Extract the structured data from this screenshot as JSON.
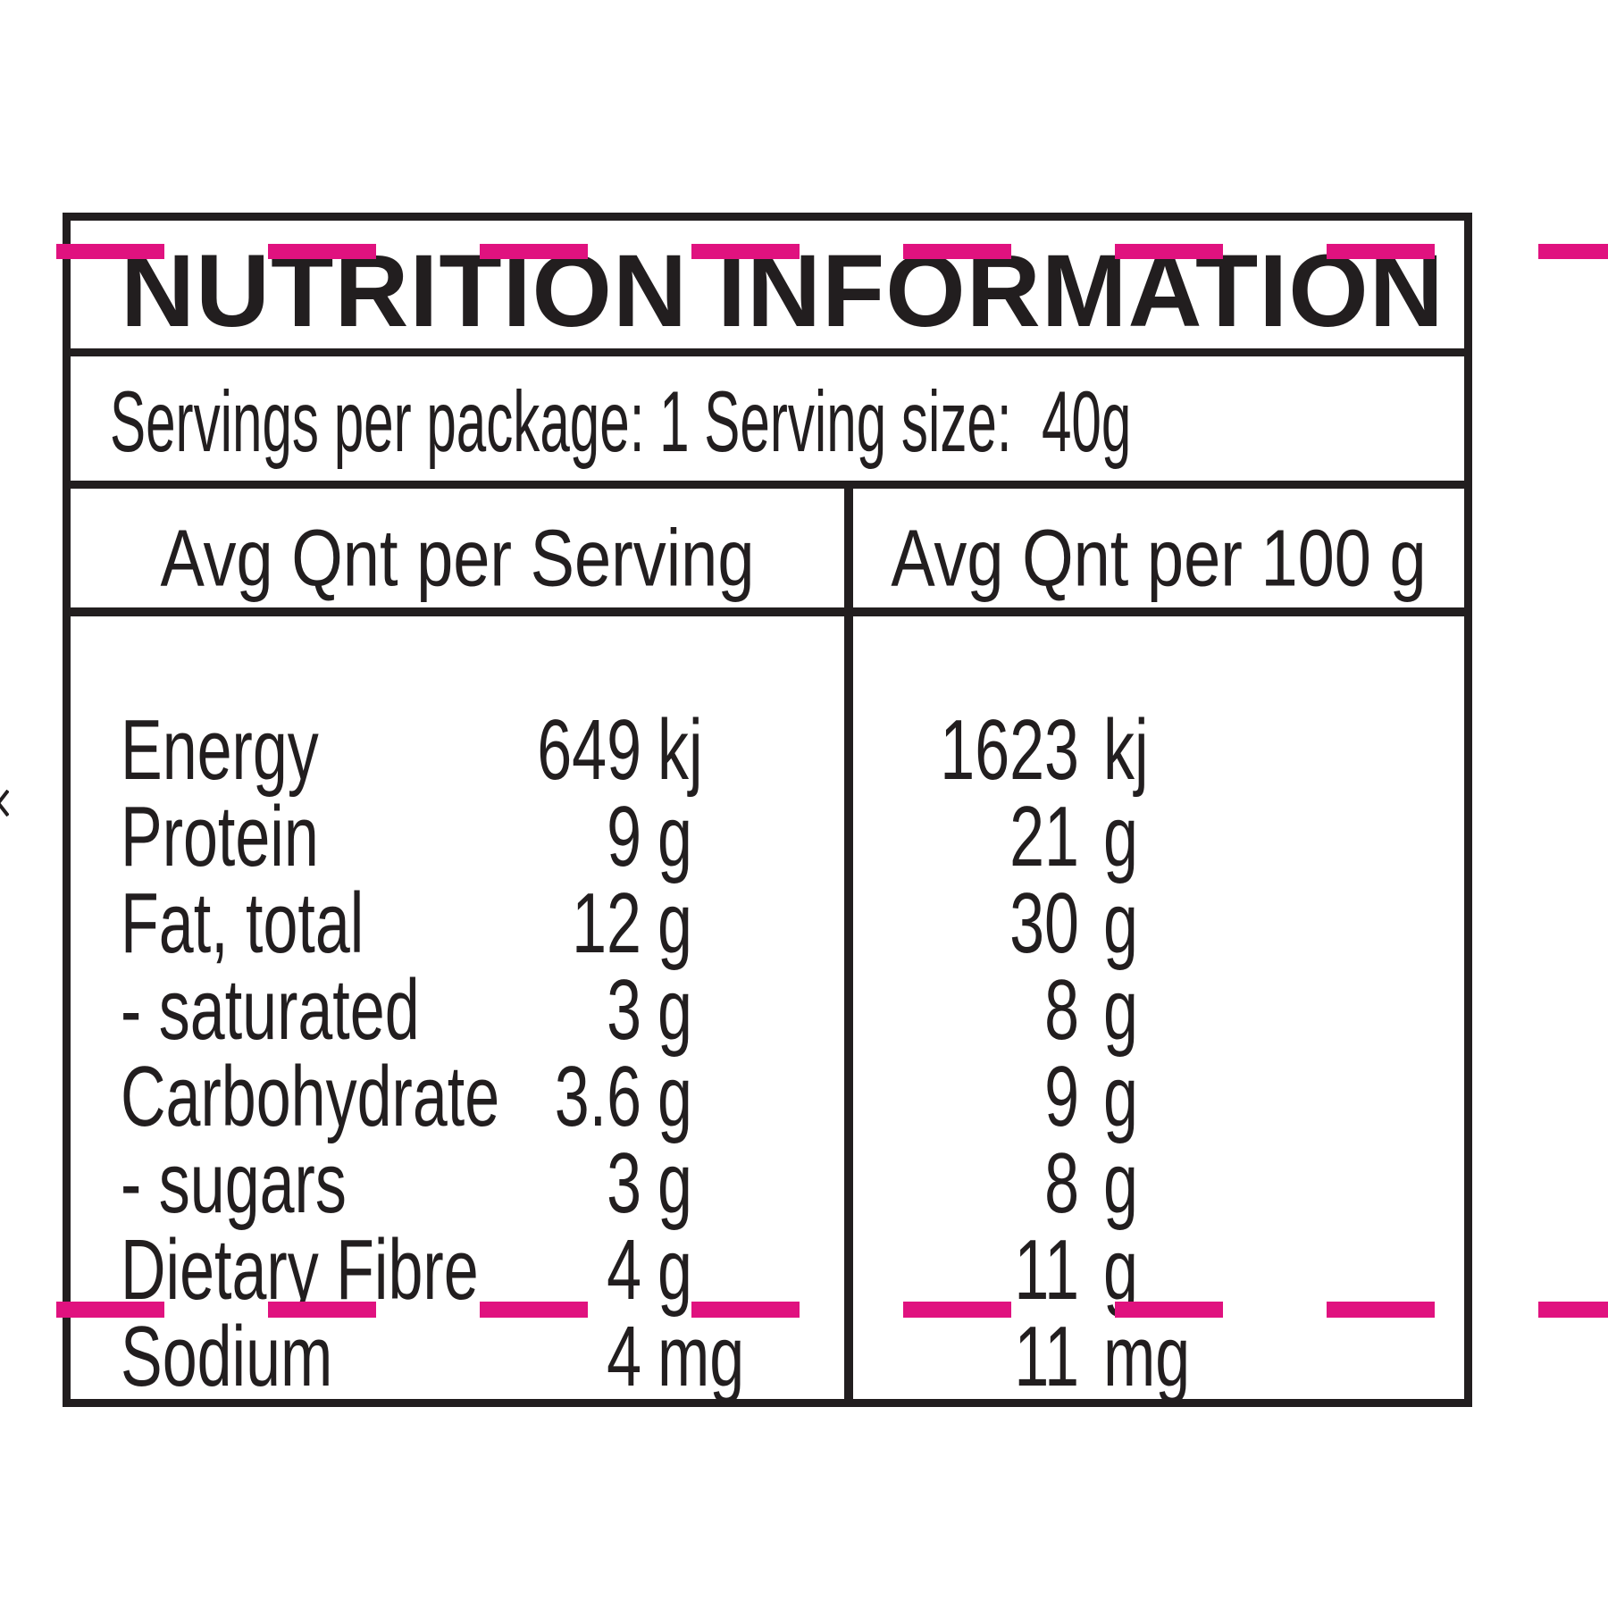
{
  "label": {
    "title": "NUTRITION INFORMATION",
    "servings_line": "Servings per package: 1 Serving size:  40g",
    "column_headers": {
      "per_serving": "Avg Qnt per Serving",
      "per_100g": "Avg Qnt per 100 g"
    },
    "rows": [
      {
        "label": "Energy",
        "serving_value": "649",
        "serving_unit": "kj",
        "per100_value": "1623",
        "per100_unit": "kj"
      },
      {
        "label": "Protein",
        "serving_value": "9",
        "serving_unit": "g",
        "per100_value": "21",
        "per100_unit": "g"
      },
      {
        "label": "Fat, total",
        "serving_value": "12",
        "serving_unit": "g",
        "per100_value": "30",
        "per100_unit": "g"
      },
      {
        "label": "- saturated",
        "serving_value": "3",
        "serving_unit": "g",
        "per100_value": "8",
        "per100_unit": "g"
      },
      {
        "label": "Carbohydrate",
        "serving_value": "3.6",
        "serving_unit": "g",
        "per100_value": "9",
        "per100_unit": "g"
      },
      {
        "label": "- sugars",
        "serving_value": "3",
        "serving_unit": "g",
        "per100_value": "8",
        "per100_unit": "g"
      },
      {
        "label": "Dietary Fibre",
        "serving_value": "4",
        "serving_unit": "g",
        "per100_value": "11",
        "per100_unit": "g"
      },
      {
        "label": "Sodium",
        "serving_value": "4",
        "serving_unit": "mg",
        "per100_value": "11",
        "per100_unit": "mg"
      }
    ],
    "colors": {
      "ink": "#221e1f",
      "accent_pink": "#e0127f"
    },
    "decoration": {
      "dashed_overprint_lines": 2
    }
  }
}
